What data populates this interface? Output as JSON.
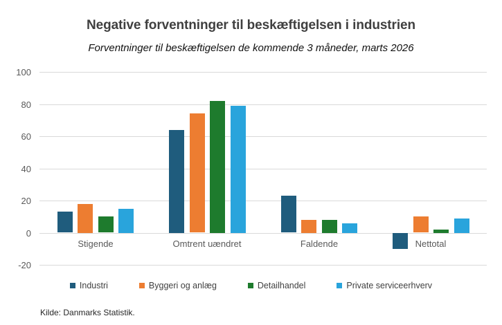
{
  "chart": {
    "title": "Negative forventninger til beskæftigelsen i industrien",
    "subtitle": "Forventninger til beskæftigelsen de kommende 3 måneder, marts 2026",
    "source": "Kilde: Danmarks Statistik."
  },
  "chart_data": {
    "type": "bar",
    "categories": [
      "Stigende",
      "Omtrent uændret",
      "Faldende",
      "Nettotal"
    ],
    "series": [
      {
        "name": "Industri",
        "color": "#1f5c7d",
        "values": [
          13,
          64,
          23,
          -10
        ]
      },
      {
        "name": "Byggeri og anlæg",
        "color": "#ed7d31",
        "values": [
          18,
          74,
          8,
          10
        ]
      },
      {
        "name": "Detailhandel",
        "color": "#1e7b2d",
        "values": [
          10,
          82,
          8,
          2
        ]
      },
      {
        "name": "Private serviceerhverv",
        "color": "#29a4dc",
        "values": [
          15,
          79,
          6,
          9
        ]
      }
    ],
    "title": "Negative forventninger til beskæftigelsen i industrien",
    "subtitle": "Forventninger til beskæftigelsen de kommende 3 måneder, marts 2026",
    "xlabel": "",
    "ylabel": "",
    "ylim": [
      -20,
      100
    ],
    "yticks": [
      100,
      80,
      60,
      40,
      20,
      0,
      -20
    ],
    "grid": true,
    "legend_position": "bottom"
  },
  "style": {
    "background": "#ffffff",
    "title_color": "#3f3f3f",
    "subtitle_color": "#111111",
    "axis_label_color": "#595959",
    "gridline_color": "#d9d9d9",
    "legend_text_color": "#404040",
    "source_text_color": "#262626"
  }
}
